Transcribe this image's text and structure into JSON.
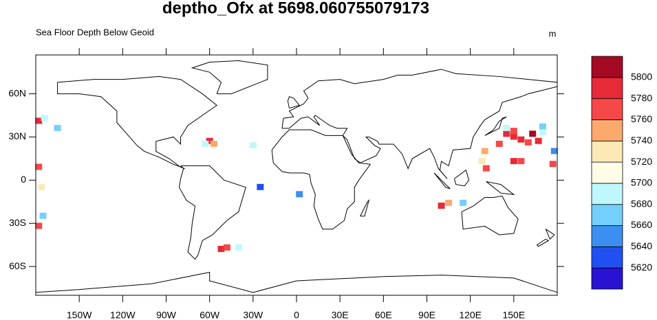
{
  "chart_data": {
    "type": "map",
    "title": "deptho_Ofx at 5698.060755079173",
    "subtitle": "Sea Floor Depth Below Geoid",
    "units": "m",
    "xlim": [
      -180,
      180
    ],
    "ylim": [
      -80,
      87
    ],
    "xticks": [
      {
        "value": -150,
        "label": "150W"
      },
      {
        "value": -120,
        "label": "120W"
      },
      {
        "value": -90,
        "label": "90W"
      },
      {
        "value": -60,
        "label": "60W"
      },
      {
        "value": -30,
        "label": "30W"
      },
      0,
      {
        "value": 30,
        "label": "30E"
      },
      {
        "value": 60,
        "label": "60E"
      },
      {
        "value": 90,
        "label": "90E"
      },
      {
        "value": 120,
        "label": "120E"
      },
      {
        "value": 150,
        "label": "150E"
      }
    ],
    "yticks": [
      {
        "value": -60,
        "label": "60S"
      },
      {
        "value": -30,
        "label": "30S"
      },
      0,
      {
        "value": 30,
        "label": "30N"
      },
      {
        "value": 60,
        "label": "60N"
      }
    ],
    "levels": [
      5620,
      5640,
      5660,
      5680,
      5700,
      5720,
      5740,
      5760,
      5780,
      5800
    ],
    "colors": [
      "#2a12d2",
      "#2050f0",
      "#3c8ef0",
      "#74d0fa",
      "#bff8fc",
      "#fffde8",
      "#fde9b6",
      "#fca96e",
      "#f54848",
      "#e62a38",
      "#a50a25"
    ],
    "cells": [
      {
        "lon": 145,
        "lat": 32,
        "value": 5790
      },
      {
        "lon": 150,
        "lat": 30,
        "value": 5780
      },
      {
        "lon": 155,
        "lat": 28,
        "value": 5790
      },
      {
        "lon": 160,
        "lat": 26,
        "value": 5770
      },
      {
        "lon": 163,
        "lat": 32,
        "value": 5800
      },
      {
        "lon": 167,
        "lat": 27,
        "value": 5780
      },
      {
        "lon": 140,
        "lat": 25,
        "value": 5770
      },
      {
        "lon": 150,
        "lat": 34,
        "value": 5760
      },
      {
        "lon": 145,
        "lat": 36,
        "value": 5680
      },
      {
        "lon": 170,
        "lat": 37,
        "value": 5660
      },
      {
        "lon": 170,
        "lat": 33,
        "value": 5690
      },
      {
        "lon": 150,
        "lat": 13,
        "value": 5780
      },
      {
        "lon": 155,
        "lat": 13,
        "value": 5770
      },
      {
        "lon": 130,
        "lat": 20,
        "value": 5740
      },
      {
        "lon": 128,
        "lat": 13,
        "value": 5720
      },
      {
        "lon": 131,
        "lat": 8,
        "value": 5770
      },
      {
        "lon": 177,
        "lat": 11,
        "value": 5760
      },
      {
        "lon": 178,
        "lat": 20,
        "value": 5650
      },
      {
        "lon": -60,
        "lat": 27,
        "value": 5780
      },
      {
        "lon": -57,
        "lat": 25,
        "value": 5750
      },
      {
        "lon": -63,
        "lat": 25,
        "value": 5690
      },
      {
        "lon": -30,
        "lat": 24,
        "value": 5680
      },
      {
        "lon": -178,
        "lat": 41,
        "value": 5780
      },
      {
        "lon": -174,
        "lat": 43,
        "value": 5690
      },
      {
        "lon": -165,
        "lat": 36,
        "value": 5670
      },
      {
        "lon": -178,
        "lat": 9,
        "value": 5760
      },
      {
        "lon": -176,
        "lat": -5,
        "value": 5720
      },
      {
        "lon": -175,
        "lat": -25,
        "value": 5660
      },
      {
        "lon": -178,
        "lat": -32,
        "value": 5770
      },
      {
        "lon": -52,
        "lat": -48,
        "value": 5790
      },
      {
        "lon": -48,
        "lat": -47,
        "value": 5770
      },
      {
        "lon": -40,
        "lat": -47,
        "value": 5680
      },
      {
        "lon": 100,
        "lat": -18,
        "value": 5780
      },
      {
        "lon": 105,
        "lat": -16,
        "value": 5740
      },
      {
        "lon": 115,
        "lat": -16,
        "value": 5660
      },
      {
        "lon": -25,
        "lat": -5,
        "value": 5630
      },
      {
        "lon": 2,
        "lat": -10,
        "value": 5640
      }
    ]
  }
}
